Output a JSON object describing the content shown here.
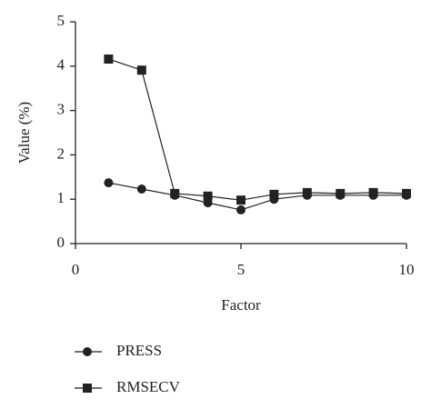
{
  "chart_data": {
    "type": "line",
    "x_label": "Factor",
    "y_label": "Value (%)",
    "x": [
      1,
      2,
      3,
      4,
      5,
      6,
      7,
      8,
      9,
      10
    ],
    "series": [
      {
        "name": "PRESS",
        "color": "#222222",
        "marker": "circle",
        "values": [
          1.37,
          1.23,
          1.09,
          0.92,
          0.76,
          1.0,
          1.09,
          1.09,
          1.09,
          1.09
        ]
      },
      {
        "name": "RMSECV",
        "color": "#222222",
        "marker": "square",
        "values": [
          4.16,
          3.91,
          1.13,
          1.07,
          0.98,
          1.11,
          1.15,
          1.13,
          1.15,
          1.13
        ]
      }
    ],
    "xlim": [
      0,
      10
    ],
    "xticks": [
      0,
      5,
      10
    ],
    "ylim": [
      0,
      5
    ],
    "yticks": [
      0,
      1,
      2,
      3,
      4,
      5
    ],
    "grid": false,
    "legend": "bottom"
  }
}
